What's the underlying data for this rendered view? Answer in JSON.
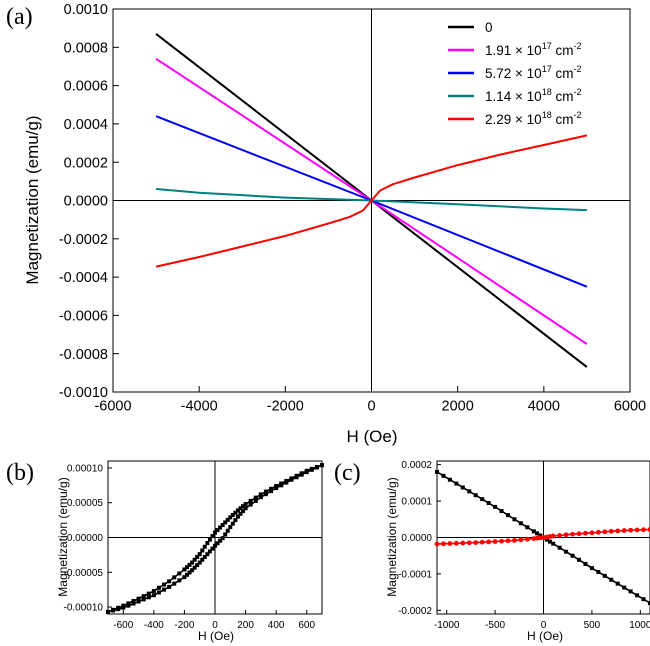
{
  "figure": {
    "panel_labels": [
      "(a)",
      "(b)",
      "(c)"
    ]
  },
  "chart_data": [
    {
      "panel": "(a)",
      "type": "line",
      "xlabel": "H (Oe)",
      "ylabel": "Magnetization (emu/g)",
      "xlim": [
        -6000,
        6000
      ],
      "ylim": [
        -0.001,
        0.001
      ],
      "xticks": [
        "-6000",
        "-4000",
        "-2000",
        "0",
        "2000",
        "4000",
        "6000"
      ],
      "yticks": [
        "-0.0010",
        "-0.0008",
        "-0.0006",
        "-0.0004",
        "-0.0002",
        "0.0000",
        "0.0002",
        "0.0004",
        "0.0006",
        "0.0008",
        "0.0010"
      ],
      "legend_position": "top-right",
      "series": [
        {
          "name": "0",
          "color": "#000000",
          "x": [
            -5000,
            0,
            5000
          ],
          "y": [
            0.00087,
            0.0,
            -0.00087
          ]
        },
        {
          "name": "1.91 × 10",
          "sup": "17",
          "unit": "cm",
          "unit_sup": "-2",
          "color": "#ff00ff",
          "x": [
            -5000,
            0,
            5000
          ],
          "y": [
            0.00074,
            0.0,
            -0.00075
          ]
        },
        {
          "name": "5.72 × 10",
          "sup": "17",
          "unit": "cm",
          "unit_sup": "-2",
          "color": "#0000ee",
          "x": [
            -5000,
            0,
            5000
          ],
          "y": [
            0.00044,
            0.0,
            -0.00045
          ]
        },
        {
          "name": "1.14 × 10",
          "sup": "18",
          "unit": "cm",
          "unit_sup": "-2",
          "color": "#008080",
          "x": [
            -5000,
            -4000,
            -2000,
            0,
            2000,
            4000,
            5000
          ],
          "y": [
            6e-05,
            4e-05,
            1.5e-05,
            0.0,
            -2e-05,
            -4.2e-05,
            -5e-05
          ]
        },
        {
          "name": "2.29 × 10",
          "sup": "18",
          "unit": "cm",
          "unit_sup": "-2",
          "color": "#ff0000",
          "x": [
            -5000,
            -4000,
            -3000,
            -2000,
            -1000,
            -500,
            -200,
            0,
            200,
            500,
            1000,
            2000,
            3000,
            4000,
            5000
          ],
          "y": [
            -0.000345,
            -0.000295,
            -0.00024,
            -0.000185,
            -0.00012,
            -8.5e-05,
            -5.2e-05,
            0.0,
            5.2e-05,
            8.5e-05,
            0.00012,
            0.000185,
            0.00024,
            0.00029,
            0.00034
          ]
        }
      ]
    },
    {
      "panel": "(b)",
      "type": "line",
      "xlabel": "H (Oe)",
      "ylabel": "Magnetization (emu/g)",
      "xlim": [
        -700,
        700
      ],
      "ylim": [
        -0.00011,
        0.00011
      ],
      "xticks": [
        "-600",
        "-400",
        "-200",
        "0",
        "200",
        "400",
        "600"
      ],
      "yticks": [
        "-0.00010",
        "-0.00005",
        "0.00000",
        "0.00005",
        "0.00010"
      ],
      "series": [
        {
          "name": "",
          "color": "#000000",
          "marker": "square",
          "x": [
            700,
            600,
            500,
            400,
            300,
            200,
            150,
            100,
            50,
            0,
            -50,
            -100,
            -150,
            -200,
            -300,
            -400,
            -500,
            -600,
            -700
          ],
          "y": [
            0.000104,
            9.6e-05,
            8.5e-05,
            7.4e-05,
            6.2e-05,
            4.8e-05,
            3.9e-05,
            2.9e-05,
            1.8e-05,
            7e-06,
            -8e-06,
            -2.4e-05,
            -3.6e-05,
            -4.6e-05,
            -6.3e-05,
            -7.7e-05,
            -8.8e-05,
            -9.8e-05,
            -0.000107
          ]
        },
        {
          "name": "",
          "color": "#000000",
          "marker": "square",
          "x": [
            -700,
            -600,
            -500,
            -400,
            -300,
            -200,
            -150,
            -100,
            -50,
            0,
            50,
            100,
            150,
            200,
            300,
            400,
            500,
            600,
            700
          ],
          "y": [
            -0.000107,
            -0.000101,
            -9.2e-05,
            -8.3e-05,
            -7.1e-05,
            -5.7e-05,
            -4.7e-05,
            -3.6e-05,
            -2.4e-05,
            -1.2e-05,
            -1e-06,
            1.5e-05,
            3e-05,
            4.2e-05,
            5.8e-05,
            7.1e-05,
            8.3e-05,
            9.4e-05,
            0.000104
          ]
        }
      ]
    },
    {
      "panel": "(c)",
      "type": "line",
      "xlabel": "H (Oe)",
      "ylabel": "Magnetization (emu/g)",
      "xlim": [
        -1100,
        1100
      ],
      "ylim": [
        -0.00021,
        0.00021
      ],
      "xticks": [
        "-1000",
        "-500",
        "0",
        "500",
        "1000"
      ],
      "yticks": [
        "-0.0002",
        "-0.0001",
        "0.0000",
        "0.0001",
        "0.0002"
      ],
      "series": [
        {
          "name": "",
          "color": "#000000",
          "marker": "square",
          "x": [
            -1100,
            -900,
            -700,
            -500,
            -300,
            -100,
            0,
            100,
            300,
            500,
            700,
            900,
            1100
          ],
          "y": [
            0.00018,
            0.000148,
            0.000116,
            8.4e-05,
            5e-05,
            1.7e-05,
            0.0,
            -1.7e-05,
            -5e-05,
            -8.4e-05,
            -0.000116,
            -0.000148,
            -0.00018
          ]
        },
        {
          "name": "",
          "color": "#ff0000",
          "marker": "circle",
          "x": [
            -1100,
            -900,
            -700,
            -500,
            -300,
            -100,
            0,
            100,
            300,
            500,
            700,
            900,
            1100
          ],
          "y": [
            -1.8e-05,
            -1.6e-05,
            -1.4e-05,
            -1.1e-05,
            -8e-06,
            -3e-06,
            0.0,
            4e-06,
            9e-06,
            1.3e-05,
            1.7e-05,
            2e-05,
            2.2e-05
          ]
        }
      ]
    }
  ]
}
